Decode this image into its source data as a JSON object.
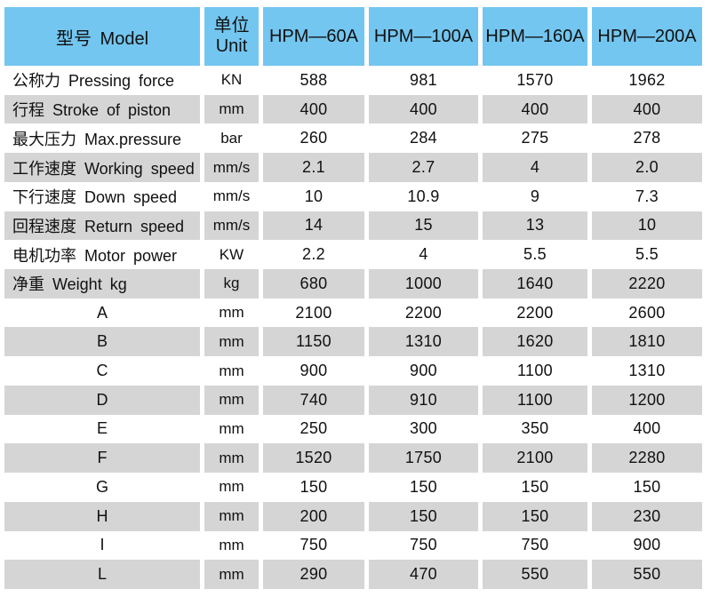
{
  "colors": {
    "header_blue": "#73C6F0",
    "row_grey": "#D5D5D5",
    "row_white": "#FFFFFF",
    "text": "#111111"
  },
  "table": {
    "header": {
      "model": "型号 Model",
      "unit_cn": "单位",
      "unit_en": "Unit",
      "models": [
        "HPM—60A",
        "HPM—100A",
        "HPM—160A",
        "HPM—200A"
      ]
    },
    "rows": [
      {
        "label": "公称力 Pressing force",
        "unit": "KN",
        "values": [
          "588",
          "981",
          "1570",
          "1962"
        ],
        "label_align": "left"
      },
      {
        "label": "行程 Stroke of piston",
        "unit": "mm",
        "values": [
          "400",
          "400",
          "400",
          "400"
        ],
        "label_align": "left"
      },
      {
        "label": "最大压力 Max.pressure",
        "unit": "bar",
        "values": [
          "260",
          "284",
          "275",
          "278"
        ],
        "label_align": "left"
      },
      {
        "label": "工作速度 Working speed",
        "unit": "mm/s",
        "values": [
          "2.1",
          "2.7",
          "4",
          "2.0"
        ],
        "label_align": "left"
      },
      {
        "label": "下行速度 Down speed",
        "unit": "mm/s",
        "values": [
          "10",
          "10.9",
          "9",
          "7.3"
        ],
        "label_align": "left"
      },
      {
        "label": "回程速度 Return speed",
        "unit": "mm/s",
        "values": [
          "14",
          "15",
          "13",
          "10"
        ],
        "label_align": "left"
      },
      {
        "label": "电机功率 Motor power",
        "unit": "KW",
        "values": [
          "2.2",
          "4",
          "5.5",
          "5.5"
        ],
        "label_align": "left"
      },
      {
        "label": "净重 Weight kg",
        "unit": "kg",
        "values": [
          "680",
          "1000",
          "1640",
          "2220"
        ],
        "label_align": "left"
      },
      {
        "label": "A",
        "unit": "mm",
        "values": [
          "2100",
          "2200",
          "2200",
          "2600"
        ],
        "label_align": "center"
      },
      {
        "label": "B",
        "unit": "mm",
        "values": [
          "1150",
          "1310",
          "1620",
          "1810"
        ],
        "label_align": "center"
      },
      {
        "label": "C",
        "unit": "mm",
        "values": [
          "900",
          "900",
          "1100",
          "1310"
        ],
        "label_align": "center"
      },
      {
        "label": "D",
        "unit": "mm",
        "values": [
          "740",
          "910",
          "1100",
          "1200"
        ],
        "label_align": "center"
      },
      {
        "label": "E",
        "unit": "mm",
        "values": [
          "250",
          "300",
          "350",
          "400"
        ],
        "label_align": "center"
      },
      {
        "label": "F",
        "unit": "mm",
        "values": [
          "1520",
          "1750",
          "2100",
          "2280"
        ],
        "label_align": "center"
      },
      {
        "label": "G",
        "unit": "mm",
        "values": [
          "150",
          "150",
          "150",
          "150"
        ],
        "label_align": "center"
      },
      {
        "label": "H",
        "unit": "mm",
        "values": [
          "200",
          "150",
          "150",
          "230"
        ],
        "label_align": "center"
      },
      {
        "label": "I",
        "unit": "mm",
        "values": [
          "750",
          "750",
          "750",
          "900"
        ],
        "label_align": "center"
      },
      {
        "label": "L",
        "unit": "mm",
        "values": [
          "290",
          "470",
          "550",
          "550"
        ],
        "label_align": "center"
      }
    ]
  }
}
